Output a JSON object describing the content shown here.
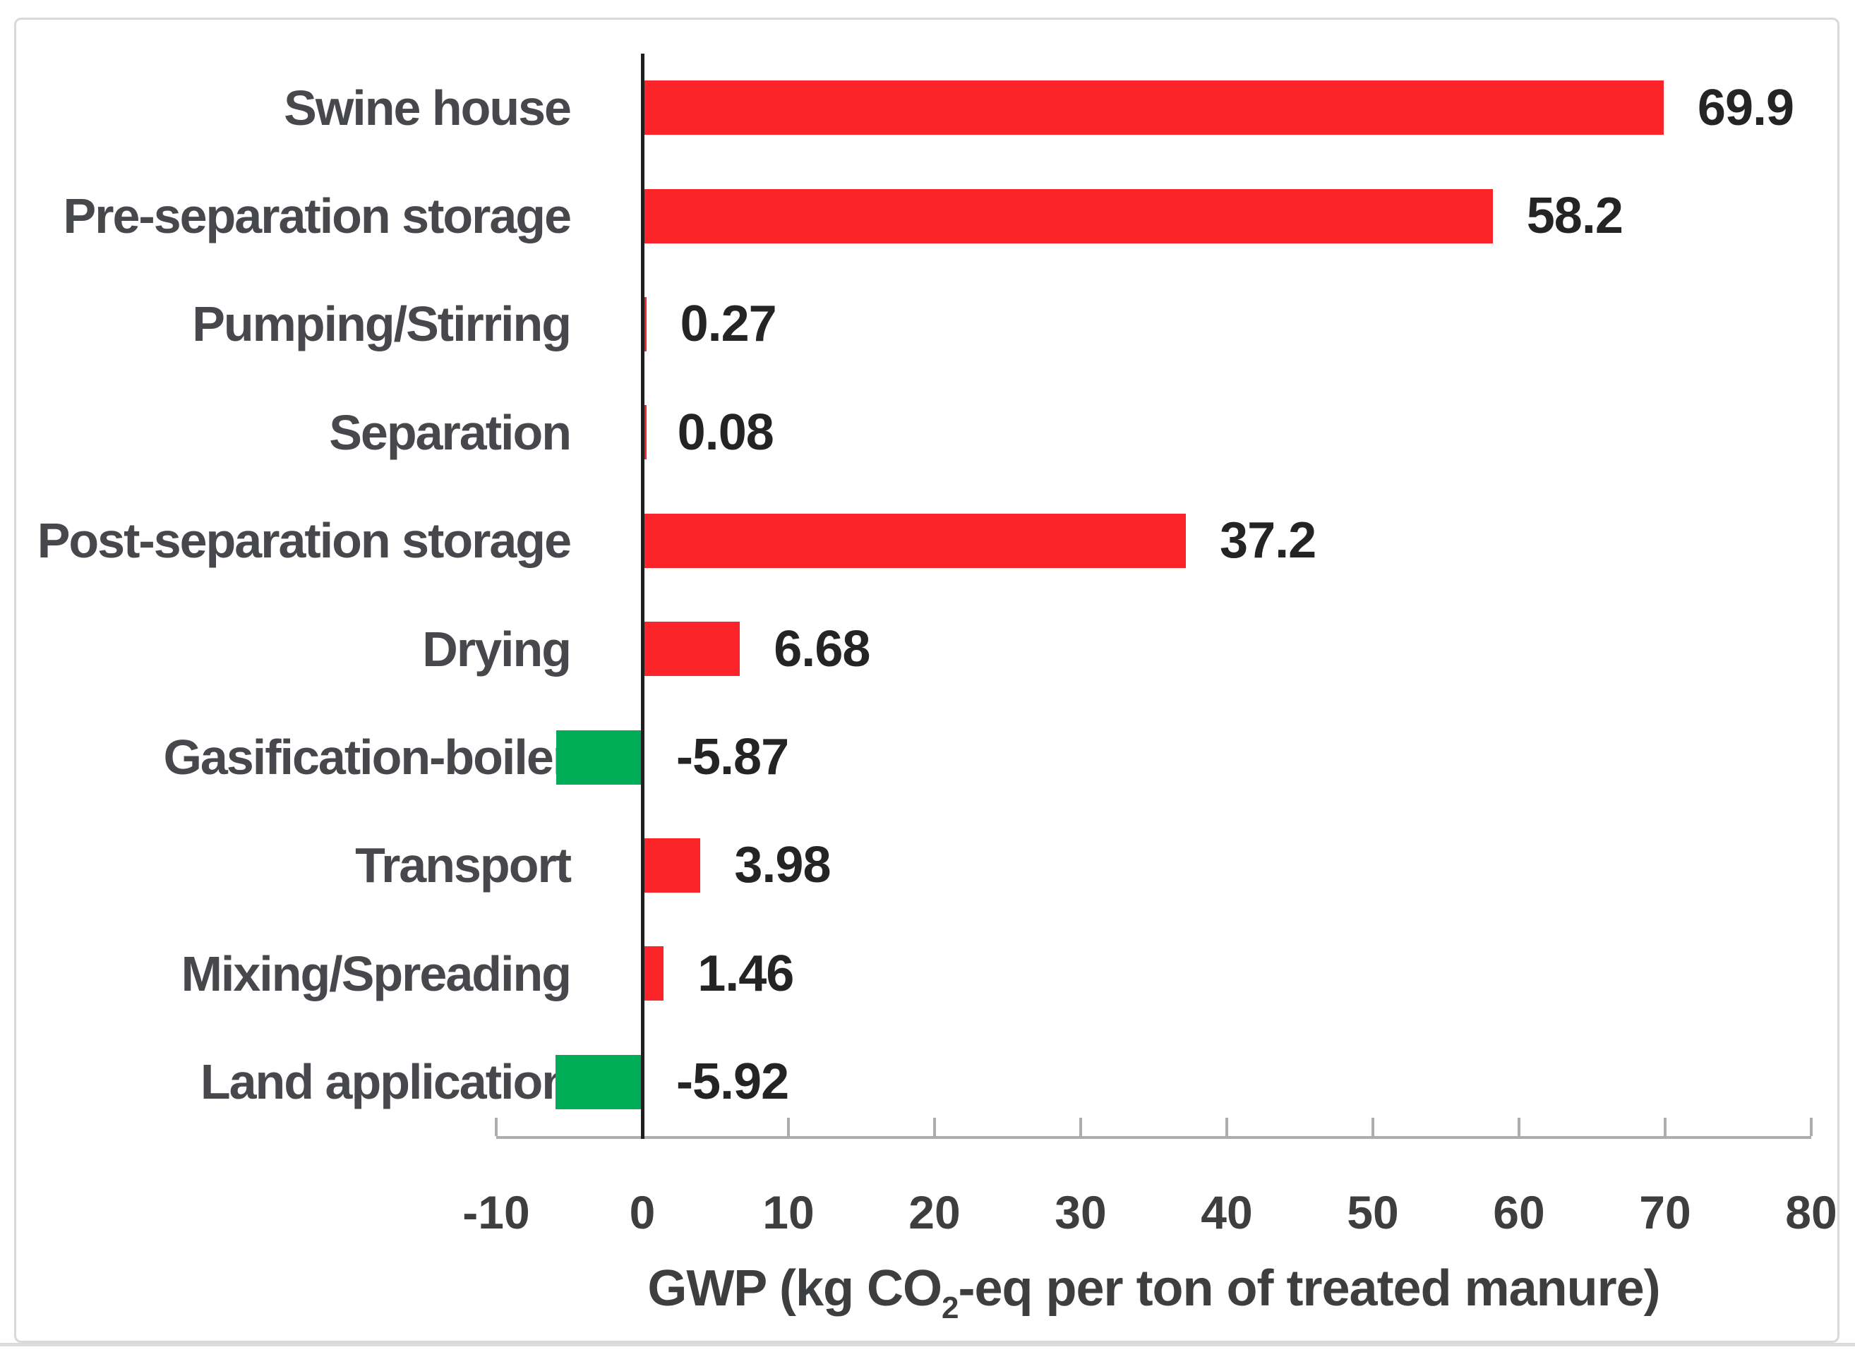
{
  "chart_data": {
    "type": "bar",
    "orientation": "horizontal",
    "categories": [
      "Swine house",
      "Pre-separation storage",
      "Pumping/Stirring",
      "Separation",
      "Post-separation storage",
      "Drying",
      "Gasification-boiler",
      "Transport",
      "Mixing/Spreading",
      "Land application"
    ],
    "values": [
      69.9,
      58.2,
      0.27,
      0.08,
      37.2,
      6.68,
      -5.87,
      3.98,
      1.46,
      -5.92
    ],
    "value_labels": [
      "69.9",
      "58.2",
      "0.27",
      "0.08",
      "37.2",
      "6.68",
      "-5.87",
      "3.98",
      "1.46",
      "-5.92"
    ],
    "xlabel_prefix": "GWP (kg CO",
    "xlabel_subscript": "2",
    "xlabel_suffix": "-eq per ton of treated manure)",
    "xlim": [
      -10,
      80
    ],
    "x_ticks": [
      -10,
      0,
      10,
      20,
      30,
      40,
      50,
      60,
      70,
      80
    ],
    "x_tick_labels": [
      "-10",
      "0",
      "10",
      "20",
      "30",
      "40",
      "50",
      "60",
      "70",
      "80"
    ],
    "positive_color": "#FB2428",
    "negative_color": "#00AC55",
    "grid": "off",
    "legend": "none"
  }
}
